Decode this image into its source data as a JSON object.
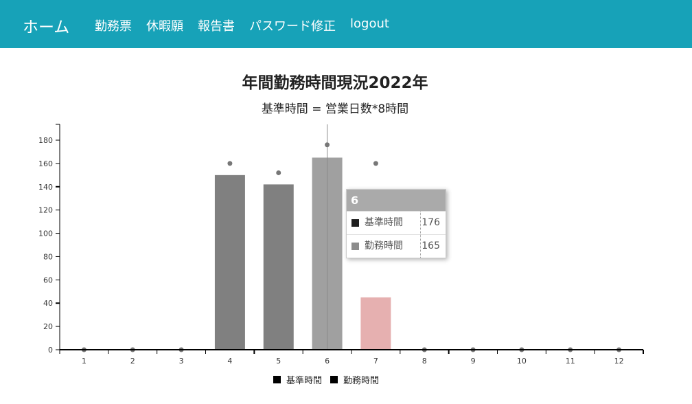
{
  "nav": {
    "brand": "ホーム",
    "items": [
      {
        "label": "勤務票"
      },
      {
        "label": "休暇願"
      },
      {
        "label": "報告書"
      },
      {
        "label": "パスワード修正"
      },
      {
        "label": "logout"
      }
    ]
  },
  "chart": {
    "title": "年間勤務時間現況2022年",
    "subtitle": "基準時間 = 営業日数*8時間"
  },
  "tooltip": {
    "header": "6",
    "rows": [
      {
        "name": "基準時間",
        "value": "176",
        "color": "#1f1f1f"
      },
      {
        "name": "勤務時間",
        "value": "165",
        "color": "#8c8c8c"
      }
    ]
  },
  "legend": {
    "items": [
      {
        "label": "基準時間",
        "color": "#000000"
      },
      {
        "label": "勤務時間",
        "color": "#000000"
      }
    ]
  },
  "chart_data": {
    "type": "bar",
    "title": "年間勤務時間現況2022年",
    "subtitle": "基準時間 = 営業日数*8時間",
    "categories": [
      "1",
      "2",
      "3",
      "4",
      "5",
      "6",
      "7",
      "8",
      "9",
      "10",
      "11",
      "12"
    ],
    "series": [
      {
        "name": "基準時間",
        "type": "scatter",
        "values": [
          0,
          0,
          0,
          160,
          152,
          176,
          160,
          0,
          0,
          0,
          0,
          0
        ]
      },
      {
        "name": "勤務時間",
        "type": "bar",
        "values": [
          0,
          0,
          0,
          150,
          142,
          165,
          45,
          0,
          0,
          0,
          0,
          0
        ]
      }
    ],
    "xlabel": "",
    "ylabel": "",
    "ylim": [
      0,
      190
    ],
    "yticks": [
      0,
      20,
      40,
      60,
      80,
      100,
      120,
      140,
      160,
      180
    ],
    "grid": false,
    "legend_position": "bottom",
    "colors": {
      "bar": "#808080",
      "bar_hover": "#a0a0a0",
      "bar_under": "#e6b0b0",
      "dot": "#777777"
    }
  }
}
